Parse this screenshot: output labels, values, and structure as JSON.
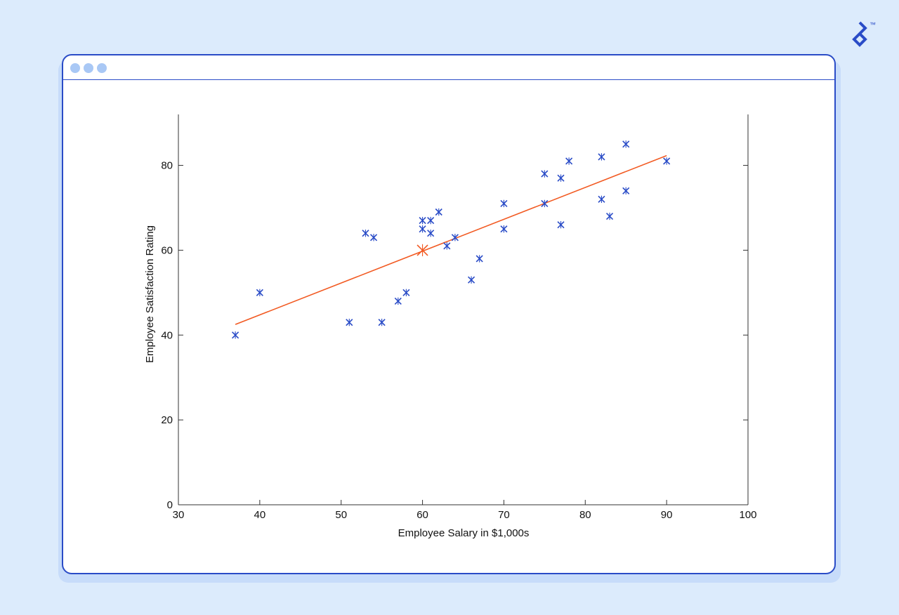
{
  "window": {
    "dots": [
      "dot-1",
      "dot-2",
      "dot-3"
    ],
    "dot_color": "#a9c8f5",
    "border_color": "#2a4cc7"
  },
  "brand": {
    "icon": "toptal-logo-icon",
    "trademark": "™"
  },
  "chart_data": {
    "type": "scatter",
    "title": "",
    "xlabel": "Employee Salary in $1,000s",
    "ylabel": "Employee Satisfaction Rating",
    "xlim": [
      30,
      100
    ],
    "ylim": [
      0,
      92
    ],
    "xticks": [
      30,
      40,
      50,
      60,
      70,
      80,
      90,
      100
    ],
    "yticks": [
      0,
      20,
      40,
      60,
      80
    ],
    "grid": false,
    "series": [
      {
        "marker": "x",
        "color": "#2a4cc7",
        "points": [
          [
            37,
            40
          ],
          [
            40,
            50
          ],
          [
            51,
            43
          ],
          [
            53,
            64
          ],
          [
            54,
            63
          ],
          [
            55,
            43
          ],
          [
            57,
            48
          ],
          [
            58,
            50
          ],
          [
            60,
            67
          ],
          [
            60,
            65
          ],
          [
            61,
            67
          ],
          [
            61,
            64
          ],
          [
            62,
            69
          ],
          [
            63,
            61
          ],
          [
            64,
            63
          ],
          [
            66,
            53
          ],
          [
            67,
            58
          ],
          [
            70,
            71
          ],
          [
            70,
            65
          ],
          [
            75,
            78
          ],
          [
            75,
            71
          ],
          [
            77,
            77
          ],
          [
            77,
            66
          ],
          [
            78,
            81
          ],
          [
            82,
            82
          ],
          [
            82,
            72
          ],
          [
            83,
            68
          ],
          [
            85,
            85
          ],
          [
            85,
            74
          ],
          [
            90,
            81
          ]
        ]
      }
    ],
    "fit_line": {
      "color": "#f25a22",
      "from": [
        37,
        42.5
      ],
      "to": [
        90,
        82.3
      ]
    },
    "mean_point": {
      "color": "#f25a22",
      "point": [
        60,
        60
      ]
    }
  }
}
